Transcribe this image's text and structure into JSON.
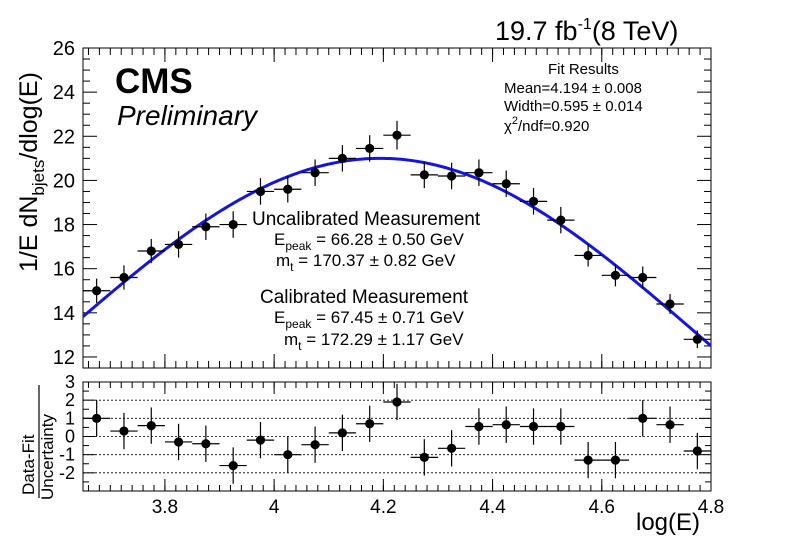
{
  "header": {
    "lumi_value": "19.7 fb",
    "lumi_exp": "-1",
    "energy": "(8 TeV)"
  },
  "cms_label": "CMS",
  "preliminary_label": "Preliminary",
  "fit_results": {
    "title": "Fit Results",
    "mean": "Mean=4.194 ± 0.008",
    "width": "Width=0.595 ± 0.014",
    "chi2_sym": "χ",
    "chi2_exp": "2",
    "chi2_rest": "/ndf=0.920"
  },
  "uncalibrated": {
    "title": "Uncalibrated Measurement",
    "epeak_prefix": "E",
    "epeak_sub": "peak",
    "epeak_value": " = 66.28 ± 0.50 GeV",
    "mt_prefix": "m",
    "mt_sub": "t",
    "mt_value": " = 170.37 ± 0.82 GeV"
  },
  "calibrated": {
    "title": "Calibrated Measurement",
    "epeak_prefix": "E",
    "epeak_sub": "peak",
    "epeak_value": " = 67.45 ± 0.71 GeV",
    "mt_prefix": "m",
    "mt_sub": "t",
    "mt_value": " = 172.29 ± 1.17 GeV"
  },
  "chart_data": [
    {
      "type": "scatter",
      "panel": "main",
      "ylabel_main": "1/E dN",
      "ylabel_sub": "bjets",
      "ylabel_tail": "/dlog(E)",
      "xlim": [
        3.65,
        4.8
      ],
      "ylim": [
        11.5,
        26
      ],
      "y_ticks": [
        12,
        14,
        16,
        18,
        20,
        22,
        24,
        26
      ],
      "x": [
        3.675,
        3.725,
        3.775,
        3.825,
        3.875,
        3.925,
        3.975,
        4.025,
        4.075,
        4.125,
        4.175,
        4.225,
        4.275,
        4.325,
        4.375,
        4.425,
        4.475,
        4.525,
        4.575,
        4.625,
        4.675,
        4.725,
        4.775
      ],
      "y": [
        15.0,
        15.6,
        16.8,
        17.1,
        17.9,
        18.0,
        19.5,
        19.6,
        20.35,
        21.0,
        21.45,
        22.05,
        20.25,
        20.2,
        20.35,
        19.85,
        19.05,
        18.2,
        16.6,
        15.7,
        15.6,
        14.4,
        12.8
      ],
      "y_err": [
        0.55,
        0.55,
        0.55,
        0.6,
        0.6,
        0.6,
        0.6,
        0.6,
        0.6,
        0.6,
        0.6,
        0.65,
        0.6,
        0.6,
        0.6,
        0.6,
        0.6,
        0.6,
        0.5,
        0.5,
        0.5,
        0.45,
        0.4
      ],
      "x_halfwidth": 0.025,
      "fit": {
        "name": "Gaussian fit",
        "color": "#1414e6",
        "mean": 4.194,
        "width": 0.595,
        "peak": 21.0,
        "x_range": [
          3.65,
          4.8
        ]
      }
    },
    {
      "type": "scatter",
      "panel": "residual",
      "ylabel_top": "Data-Fit",
      "ylabel_bottom": "Uncertainty",
      "xlabel": "log(E)",
      "xlim": [
        3.65,
        4.8
      ],
      "ylim": [
        -3,
        3
      ],
      "y_ticks": [
        -2,
        -1,
        0,
        1,
        2,
        3
      ],
      "x_ticks": [
        3.8,
        4.0,
        4.2,
        4.4,
        4.6,
        4.8
      ],
      "x_tick_labels": [
        "3.8",
        "4",
        "4.2",
        "4.4",
        "4.6",
        "4.8"
      ],
      "grid_y": [
        -2,
        -1,
        0,
        1,
        2
      ],
      "x": [
        3.675,
        3.725,
        3.775,
        3.825,
        3.875,
        3.925,
        3.975,
        4.025,
        4.075,
        4.125,
        4.175,
        4.225,
        4.275,
        4.325,
        4.375,
        4.425,
        4.475,
        4.525,
        4.575,
        4.625,
        4.675,
        4.725,
        4.775
      ],
      "y": [
        1.0,
        0.3,
        0.6,
        -0.3,
        -0.4,
        -1.6,
        -0.2,
        -1.0,
        -0.45,
        0.2,
        0.7,
        1.9,
        -1.15,
        -0.65,
        0.55,
        0.65,
        0.55,
        0.55,
        -1.3,
        -1.3,
        1.0,
        0.65,
        -0.8
      ],
      "y_err": 1.0,
      "x_halfwidth": 0.025
    }
  ]
}
